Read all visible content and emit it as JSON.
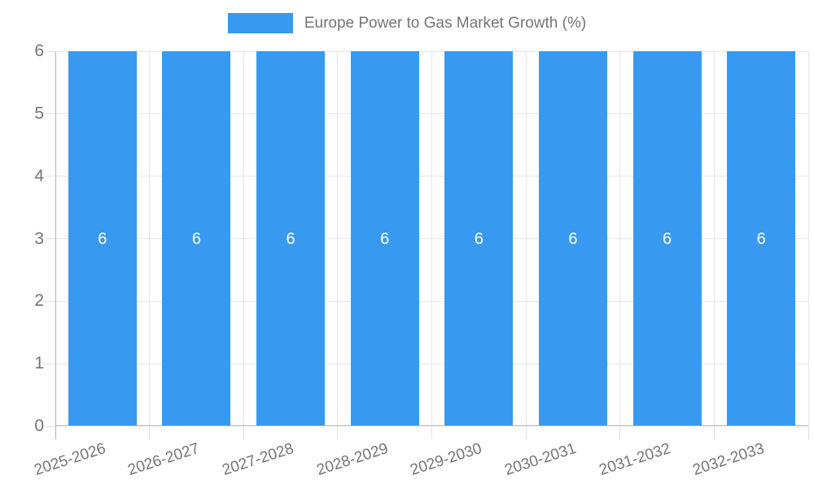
{
  "chart_data": {
    "type": "bar",
    "title": "Europe Power to Gas Market Growth (%)",
    "legend": {
      "position": "top",
      "entries": [
        "Europe Power to Gas Market Growth (%)"
      ]
    },
    "categories": [
      "2025-2026",
      "2026-2027",
      "2027-2028",
      "2028-2029",
      "2029-2030",
      "2030-2031",
      "2031-2032",
      "2032-2033"
    ],
    "series": [
      {
        "name": "Europe Power to Gas Market Growth (%)",
        "values": [
          6,
          6,
          6,
          6,
          6,
          6,
          6,
          6
        ]
      }
    ],
    "bar_value_labels": [
      "6",
      "6",
      "6",
      "6",
      "6",
      "6",
      "6",
      "6"
    ],
    "xlabel": "",
    "ylabel": "",
    "ylim": [
      0,
      6
    ],
    "yticks": [
      0,
      1,
      2,
      3,
      4,
      5,
      6
    ],
    "grid": true,
    "colors": {
      "bar": "#3899F0",
      "axis_text": "#757575",
      "axis_line": "#b2b2b2",
      "grid_line": "#e6e6e6",
      "tick_line": "#e0e0e0",
      "value_label": "#ffffff",
      "background": "#ffffff"
    }
  }
}
